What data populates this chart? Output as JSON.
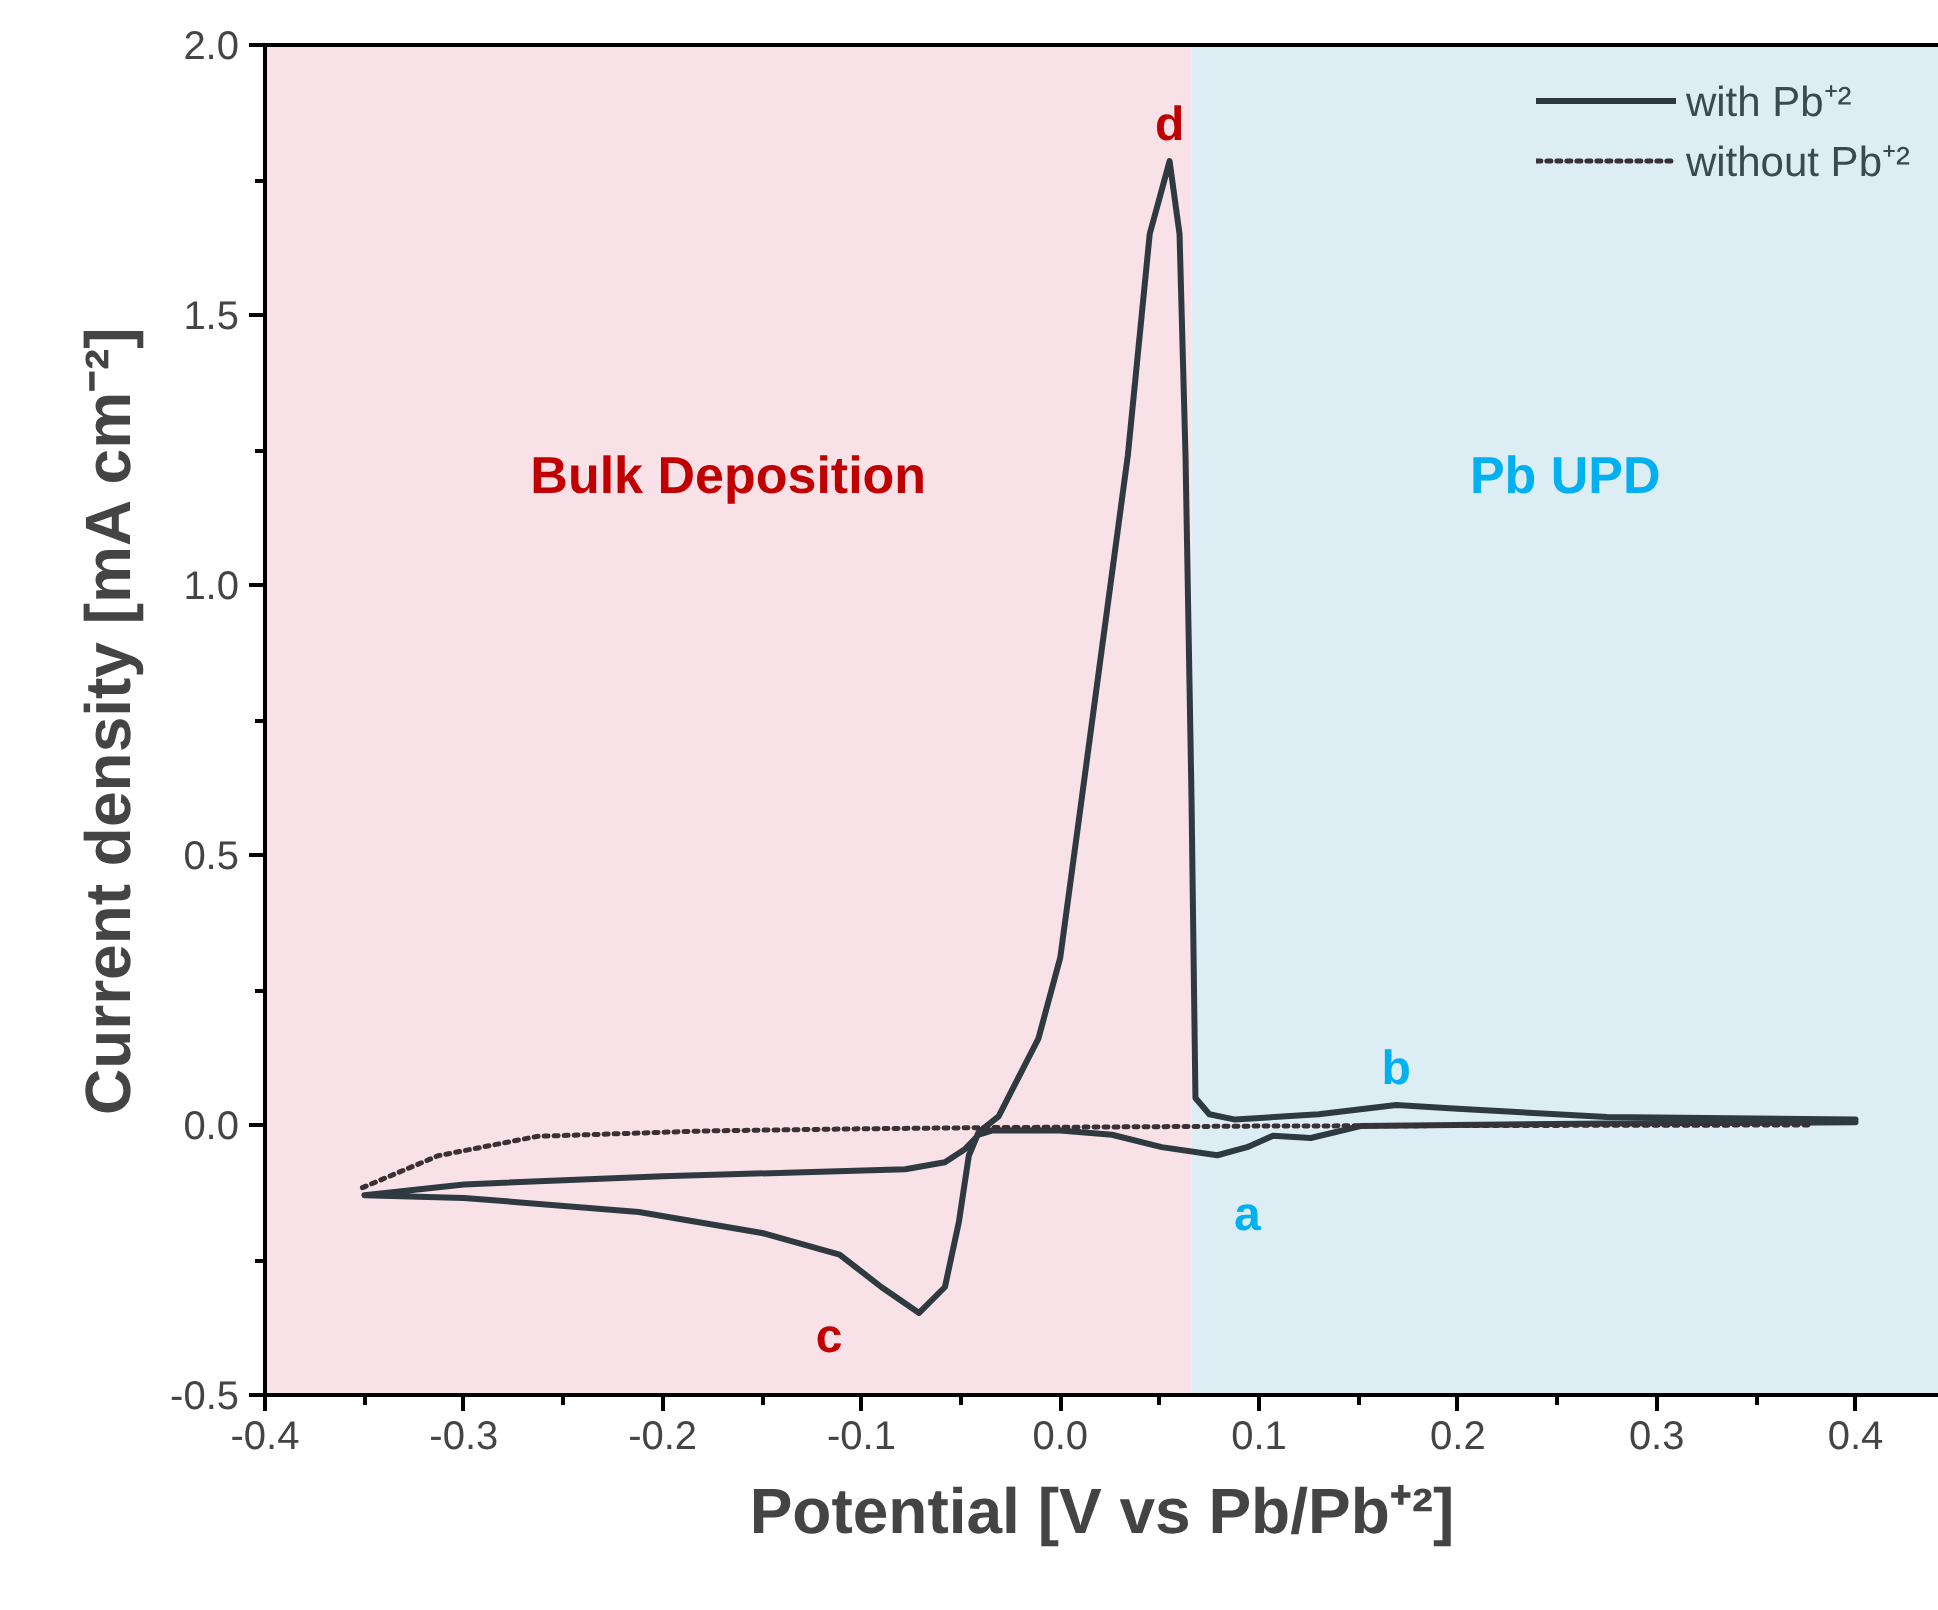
{
  "chart_data": {
    "type": "line",
    "xlabel": "Potential [V vs Pb/Pb⁺²]",
    "ylabel": "Current density [mA cm⁻²]",
    "xlim": [
      -0.4,
      0.442
    ],
    "ylim": [
      -0.5,
      2.0
    ],
    "xticks": [
      -0.4,
      {
        "value": -0.35,
        "label": null
      },
      -0.3,
      {
        "value": -0.25,
        "label": null
      },
      -0.2,
      {
        "value": -0.15,
        "label": null
      },
      -0.1,
      {
        "value": -0.05,
        "label": null
      },
      {
        "value": 0,
        "label": "0.0"
      },
      {
        "value": 0.05,
        "label": null
      },
      0.1,
      {
        "value": 0.15,
        "label": null
      },
      0.2,
      {
        "value": 0.25,
        "label": null
      },
      0.3,
      {
        "value": 0.35,
        "label": null
      },
      0.4
    ],
    "yticks": [
      -0.5,
      {
        "value": -0.25,
        "label": null
      },
      {
        "value": 0,
        "label": "0.0"
      },
      {
        "value": 0.25,
        "label": null
      },
      0.5,
      {
        "value": 0.75,
        "label": null
      },
      {
        "value": 1,
        "label": "1.0"
      },
      {
        "value": 1.25,
        "label": null
      },
      1.5,
      {
        "value": 1.75,
        "label": null
      },
      {
        "value": 2,
        "label": "2.0"
      }
    ],
    "grid": false,
    "legend": "top right",
    "series": [
      {
        "name": "with Pb⁺²",
        "color": "#2f3a40",
        "line_style": "solid",
        "x": [
          0.4,
          0.275,
          0.151,
          0.126,
          0.107,
          0.094,
          0.079,
          0.051,
          0.026,
          0.0,
          -0.034,
          -0.041,
          -0.048,
          -0.058,
          -0.078,
          -0.2,
          -0.3,
          -0.35,
          -0.3,
          -0.212,
          -0.15,
          -0.111,
          -0.09,
          -0.071,
          -0.058,
          -0.051,
          -0.046,
          -0.041,
          -0.031,
          -0.011,
          0.0,
          0.011,
          0.034,
          0.045,
          0.055,
          0.06,
          0.063,
          0.066,
          0.068,
          0.075,
          0.088,
          0.13,
          0.169,
          0.2,
          0.275,
          0.4
        ],
        "values": [
          0.005,
          0.003,
          -0.002,
          -0.024,
          -0.02,
          -0.041,
          -0.056,
          -0.041,
          -0.018,
          -0.01,
          -0.01,
          -0.018,
          -0.045,
          -0.069,
          -0.082,
          -0.095,
          -0.11,
          -0.13,
          -0.135,
          -0.161,
          -0.2,
          -0.24,
          -0.3,
          -0.348,
          -0.3,
          -0.18,
          -0.057,
          -0.013,
          0.016,
          0.16,
          0.31,
          0.61,
          1.24,
          1.65,
          1.785,
          1.65,
          1.24,
          0.61,
          0.05,
          0.02,
          0.01,
          0.02,
          0.037,
          0.03,
          0.015,
          0.01
        ]
      },
      {
        "name": "without Pb⁺²",
        "color": "#3a3035",
        "line_style": "dotted",
        "x": [
          -0.351,
          -0.313,
          -0.263,
          -0.179,
          -0.1,
          -0.04,
          0.1,
          0.2,
          0.378
        ],
        "values": [
          -0.116,
          -0.057,
          -0.021,
          -0.011,
          -0.007,
          -0.005,
          -0.002,
          -0.001,
          0.0
        ]
      }
    ],
    "bands": [
      {
        "axis": "x",
        "from": -0.4,
        "to": 0.066,
        "label": "Bulk Deposition",
        "color": "#f8e1e7"
      },
      {
        "axis": "x",
        "from": 0.066,
        "to": 0.442,
        "label": "Pb UPD",
        "color": "#dcedf4"
      }
    ],
    "annotations": [
      {
        "text": "d",
        "x": 0.055,
        "y": 1.785
      },
      {
        "text": "c",
        "x": -0.071,
        "y": -0.348
      },
      {
        "text": "a",
        "x": 0.079,
        "y": -0.056
      },
      {
        "text": "b",
        "x": 0.169,
        "y": 0.037
      }
    ]
  }
}
